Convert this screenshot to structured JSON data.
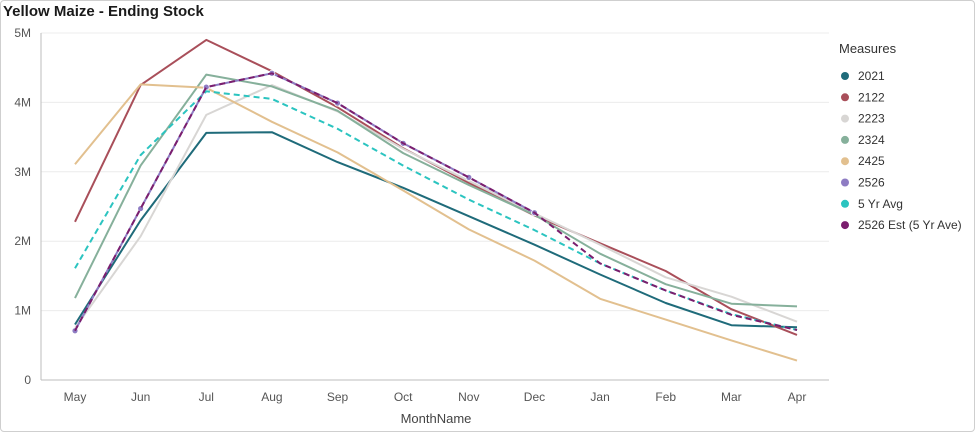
{
  "chart_data": {
    "type": "line",
    "title": "Yellow Maize - Ending Stock",
    "xlabel": "MonthName",
    "ylabel": "",
    "ylim": [
      0,
      5000000
    ],
    "y_ticks": [
      {
        "value": 0,
        "label": "0"
      },
      {
        "value": 1000000,
        "label": "1M"
      },
      {
        "value": 2000000,
        "label": "2M"
      },
      {
        "value": 3000000,
        "label": "3M"
      },
      {
        "value": 4000000,
        "label": "4M"
      },
      {
        "value": 5000000,
        "label": "5M"
      }
    ],
    "categories": [
      "May",
      "Jun",
      "Jul",
      "Aug",
      "Sep",
      "Oct",
      "Nov",
      "Dec",
      "Jan",
      "Feb",
      "Mar",
      "Apr"
    ],
    "grid": true,
    "legend_title": "Measures",
    "legend_position": "right",
    "series": [
      {
        "name": "2021",
        "color": "#1f6b7a",
        "dashed": false,
        "markers": false,
        "values": [
          800000,
          2300000,
          3560000,
          3570000,
          3140000,
          2770000,
          2360000,
          1950000,
          1520000,
          1110000,
          790000,
          760000
        ]
      },
      {
        "name": "2122",
        "color": "#a94f5a",
        "dashed": false,
        "markers": false,
        "values": [
          2280000,
          4250000,
          4900000,
          4450000,
          3930000,
          3340000,
          2840000,
          2370000,
          1970000,
          1570000,
          1020000,
          650000
        ]
      },
      {
        "name": "2223",
        "color": "#d8d6d4",
        "dashed": false,
        "markers": false,
        "values": [
          750000,
          2070000,
          3820000,
          4250000,
          3870000,
          3330000,
          2870000,
          2400000,
          1950000,
          1480000,
          1200000,
          840000
        ]
      },
      {
        "name": "2324",
        "color": "#86b09b",
        "dashed": false,
        "markers": false,
        "values": [
          1180000,
          3090000,
          4400000,
          4230000,
          3880000,
          3270000,
          2810000,
          2380000,
          1820000,
          1380000,
          1100000,
          1060000
        ]
      },
      {
        "name": "2425",
        "color": "#e2c08f",
        "dashed": false,
        "markers": false,
        "values": [
          3110000,
          4260000,
          4210000,
          3720000,
          3280000,
          2730000,
          2170000,
          1720000,
          1170000,
          870000,
          570000,
          280000
        ]
      },
      {
        "name": "2526",
        "color": "#8e7cc3",
        "dashed": false,
        "markers": true,
        "values": [
          710000,
          2470000,
          4220000,
          4420000,
          3990000,
          3410000,
          2920000,
          2410000,
          null,
          null,
          null,
          null
        ]
      },
      {
        "name": "5 Yr Avg",
        "color": "#2bc4c0",
        "dashed": true,
        "markers": false,
        "values": [
          1610000,
          3240000,
          4160000,
          4050000,
          3620000,
          3090000,
          2600000,
          2160000,
          1680000,
          1290000,
          950000,
          720000
        ]
      },
      {
        "name": "2526 Est (5 Yr Ave)",
        "color": "#7b1e6e",
        "dashed": true,
        "markers": false,
        "values": [
          710000,
          2470000,
          4220000,
          4420000,
          3990000,
          3410000,
          2920000,
          2410000,
          1680000,
          1290000,
          940000,
          720000
        ]
      }
    ]
  }
}
